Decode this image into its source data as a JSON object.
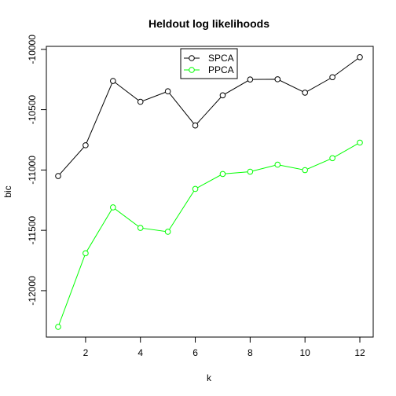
{
  "chart_data": {
    "type": "line",
    "title": "Heldout log likelihoods",
    "xlabel": "k",
    "ylabel": "bic",
    "x": [
      1,
      2,
      3,
      4,
      5,
      6,
      7,
      8,
      9,
      10,
      11,
      12
    ],
    "xlim": [
      1,
      12
    ],
    "ylim": [
      -12300,
      -10060
    ],
    "xticks": [
      2,
      4,
      6,
      8,
      10,
      12
    ],
    "yticks": [
      -12000,
      -11500,
      -11000,
      -10500,
      -10000
    ],
    "grid": false,
    "legend_position": "top-center",
    "series": [
      {
        "name": "SPCA",
        "color": "#000000",
        "values": [
          -11050,
          -10795,
          -10262,
          -10435,
          -10348,
          -10631,
          -10381,
          -10250,
          -10248,
          -10359,
          -10231,
          -10065
        ]
      },
      {
        "name": "PPCA",
        "color": "#00ff00",
        "values": [
          -12300,
          -11690,
          -11310,
          -11480,
          -11512,
          -11157,
          -11033,
          -11014,
          -10956,
          -11001,
          -10902,
          -10773
        ]
      }
    ]
  }
}
